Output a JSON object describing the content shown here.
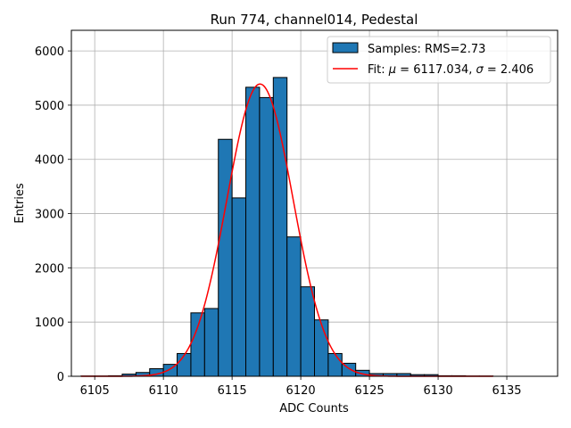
{
  "chart_data": {
    "type": "bar",
    "title": "Run 774, channel014, Pedestal",
    "xlabel": "ADC Counts",
    "ylabel": "Entries",
    "xlim": [
      6103.3,
      6138.7
    ],
    "ylim": [
      0,
      6380
    ],
    "xticks": [
      6105,
      6110,
      6115,
      6120,
      6125,
      6130,
      6135
    ],
    "yticks": [
      0,
      1000,
      2000,
      3000,
      4000,
      5000,
      6000
    ],
    "grid": true,
    "legend_position": "top-right",
    "colors": {
      "bars": "#1f77b4",
      "bar_edge": "#000000",
      "fit": "#ff0000",
      "grid": "#b0b0b0"
    },
    "histogram": {
      "name": "Samples: RMS=2.73",
      "bins": [
        {
          "x0": 6104.0,
          "x1": 6105.0,
          "count": 5
        },
        {
          "x0": 6105.0,
          "x1": 6106.0,
          "count": 5
        },
        {
          "x0": 6106.0,
          "x1": 6107.0,
          "count": 10
        },
        {
          "x0": 6107.0,
          "x1": 6108.0,
          "count": 40
        },
        {
          "x0": 6108.0,
          "x1": 6109.0,
          "count": 70
        },
        {
          "x0": 6109.0,
          "x1": 6110.0,
          "count": 140
        },
        {
          "x0": 6110.0,
          "x1": 6111.0,
          "count": 220
        },
        {
          "x0": 6111.0,
          "x1": 6112.0,
          "count": 420
        },
        {
          "x0": 6112.0,
          "x1": 6113.0,
          "count": 1170
        },
        {
          "x0": 6113.0,
          "x1": 6114.0,
          "count": 1250
        },
        {
          "x0": 6114.0,
          "x1": 6115.0,
          "count": 4370
        },
        {
          "x0": 6115.0,
          "x1": 6116.0,
          "count": 3290
        },
        {
          "x0": 6116.0,
          "x1": 6117.0,
          "count": 5330
        },
        {
          "x0": 6117.0,
          "x1": 6118.0,
          "count": 5140
        },
        {
          "x0": 6118.0,
          "x1": 6119.0,
          "count": 5510
        },
        {
          "x0": 6119.0,
          "x1": 6120.0,
          "count": 2570
        },
        {
          "x0": 6120.0,
          "x1": 6121.0,
          "count": 1650
        },
        {
          "x0": 6121.0,
          "x1": 6122.0,
          "count": 1040
        },
        {
          "x0": 6122.0,
          "x1": 6123.0,
          "count": 420
        },
        {
          "x0": 6123.0,
          "x1": 6124.0,
          "count": 240
        },
        {
          "x0": 6124.0,
          "x1": 6125.0,
          "count": 110
        },
        {
          "x0": 6125.0,
          "x1": 6126.0,
          "count": 50
        },
        {
          "x0": 6126.0,
          "x1": 6127.0,
          "count": 50
        },
        {
          "x0": 6127.0,
          "x1": 6128.0,
          "count": 50
        },
        {
          "x0": 6128.0,
          "x1": 6129.0,
          "count": 30
        },
        {
          "x0": 6129.0,
          "x1": 6130.0,
          "count": 30
        },
        {
          "x0": 6130.0,
          "x1": 6131.0,
          "count": 10
        },
        {
          "x0": 6131.0,
          "x1": 6132.0,
          "count": 10
        },
        {
          "x0": 6132.0,
          "x1": 6133.0,
          "count": 5
        },
        {
          "x0": 6133.0,
          "x1": 6134.0,
          "count": 5
        }
      ]
    },
    "fit": {
      "name_prefix": "Fit: ",
      "mu_symbol": "μ",
      "mu_text": " = 6117.034, ",
      "sigma_symbol": "σ",
      "sigma_text": " = 2.406",
      "mu": 6117.034,
      "sigma": 2.406,
      "amplitude": 5390,
      "x_range": [
        6104.0,
        6134.0
      ]
    }
  }
}
